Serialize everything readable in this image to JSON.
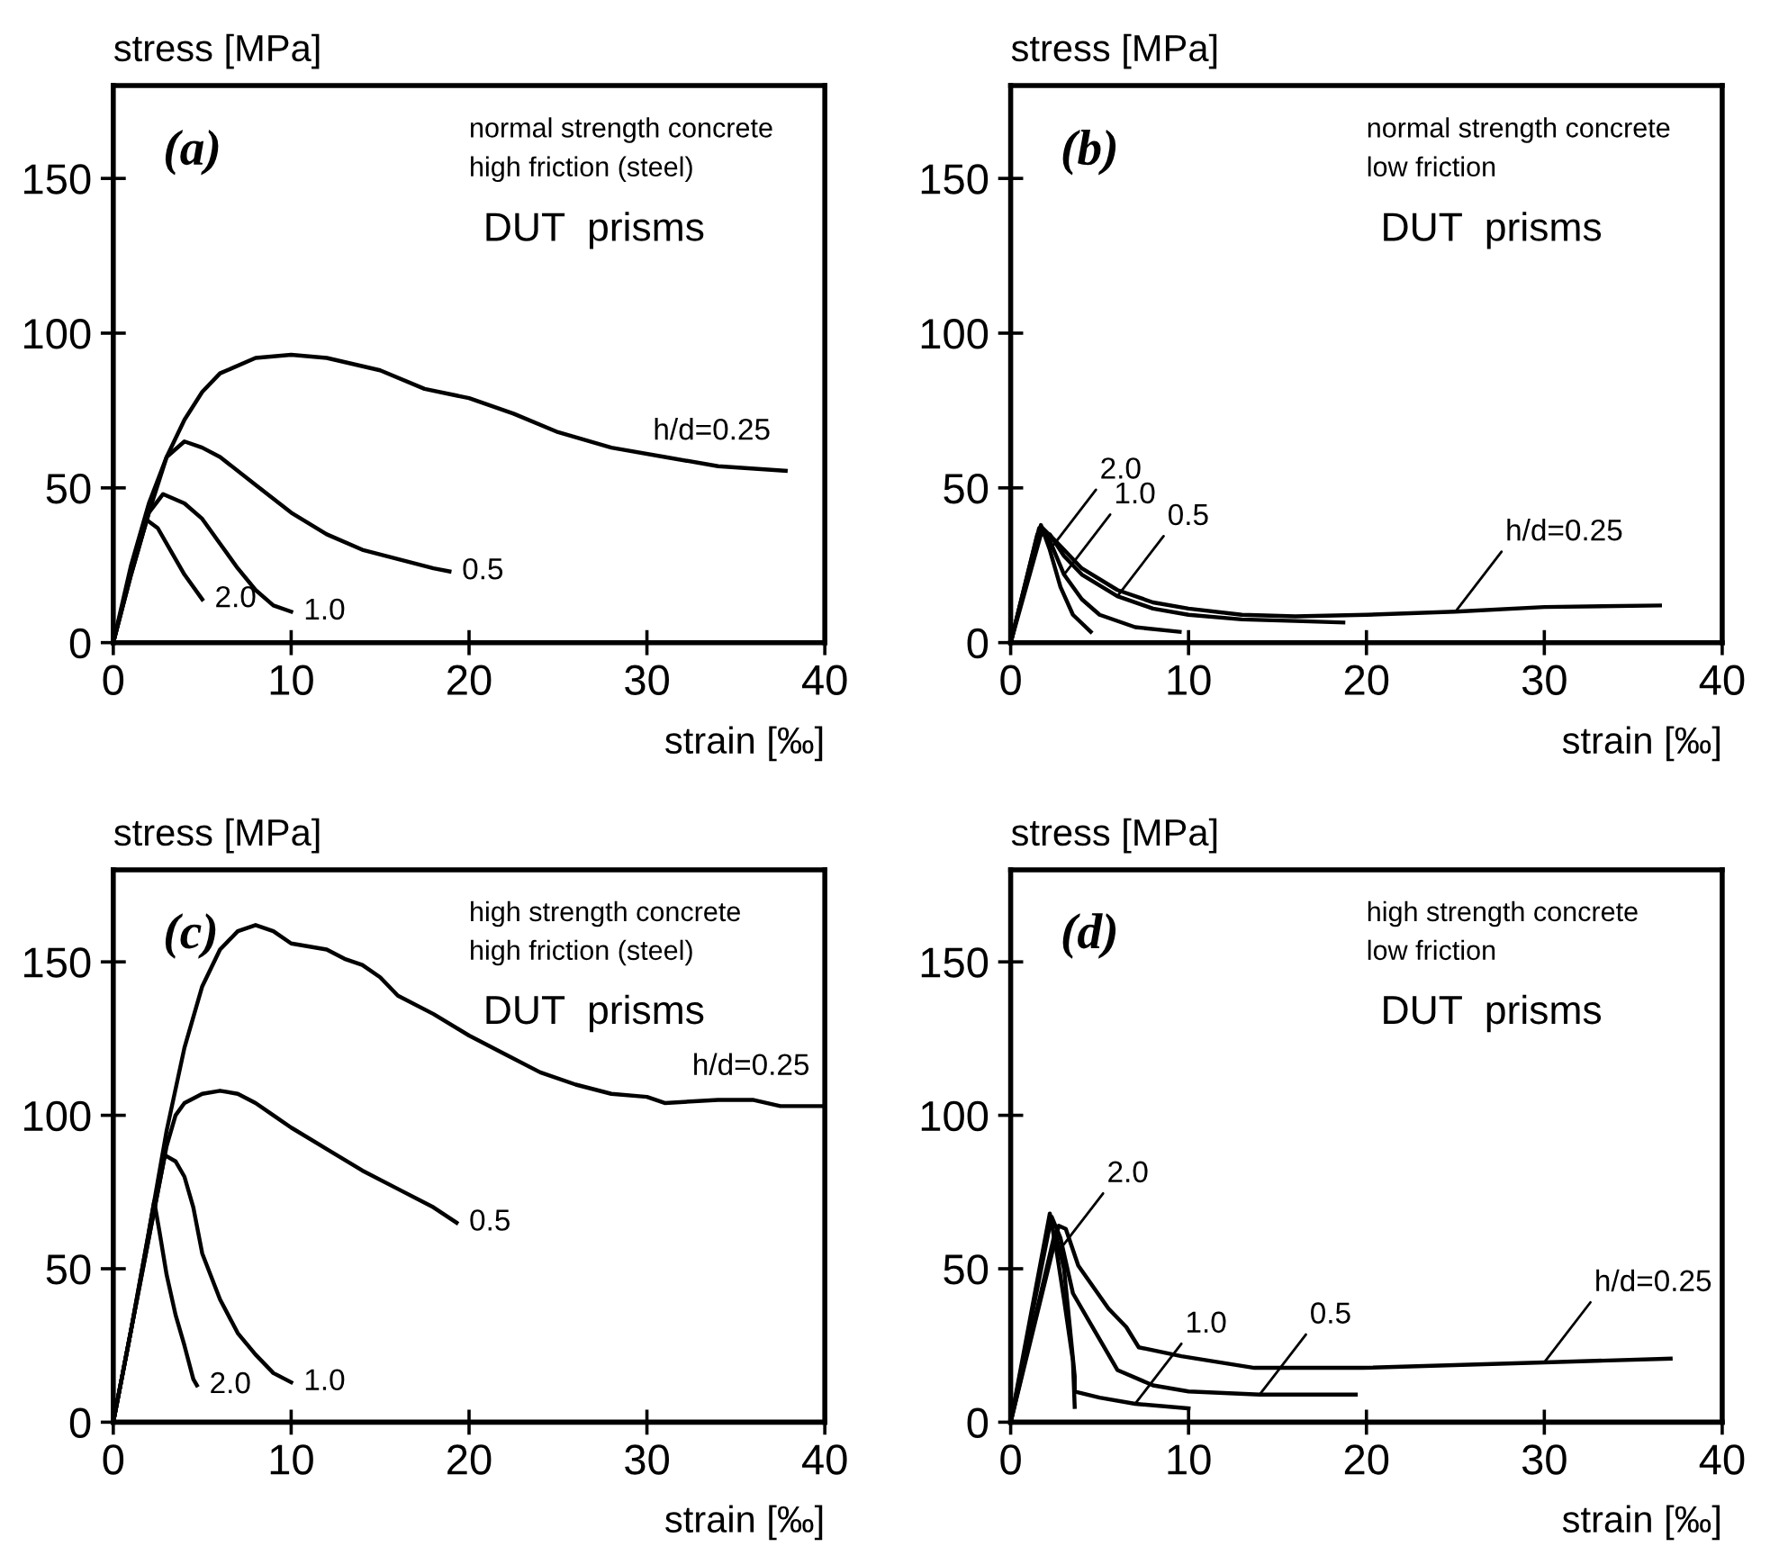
{
  "chart_data": [
    {
      "type": "line",
      "xlabel": "strain [‰]",
      "ylabel": "stress [MPa]",
      "xlim": [
        0,
        40
      ],
      "ylim": [
        0,
        180
      ],
      "xticks": [
        0,
        10,
        20,
        30,
        40
      ],
      "yticks": [
        0,
        50,
        100,
        150
      ],
      "grid": false,
      "legend": false,
      "marker": "none",
      "line_style": "solid",
      "annotations": [
        "(a)",
        "normal strength concrete",
        "high friction (steel)",
        "DUT  prisms",
        {
          "text": "h/d=0.25",
          "x": 37.8,
          "y": 55.5
        },
        {
          "text": "0.5",
          "x": 18.9,
          "y": 23
        },
        {
          "text": "1.0",
          "x": 10,
          "y": 10
        },
        {
          "text": "2.0",
          "x": 5,
          "y": 14
        }
      ],
      "series": [
        {
          "color": "#000000",
          "x": [
            0,
            1,
            2,
            3,
            4,
            5,
            6,
            8,
            10,
            12,
            15,
            17.5,
            20,
            22.5,
            25,
            28,
            31,
            34,
            37.8
          ],
          "values": [
            0,
            25,
            45,
            60,
            72,
            81,
            87,
            92,
            93,
            92,
            88,
            82,
            79,
            74,
            68,
            63,
            60,
            57,
            55.5
          ]
        },
        {
          "color": "#000000",
          "x": [
            0,
            1,
            2,
            3,
            4,
            5,
            6,
            8,
            10,
            12,
            14,
            16,
            18,
            18.9
          ],
          "values": [
            0,
            22,
            42,
            60,
            65,
            63,
            60,
            51,
            42,
            35,
            30,
            27,
            24,
            23
          ]
        },
        {
          "color": "#000000",
          "x": [
            0,
            1,
            2,
            2.8,
            4,
            5,
            6,
            7,
            8,
            9,
            10
          ],
          "values": [
            0,
            22,
            42,
            48,
            45,
            40,
            32,
            24,
            17,
            12,
            10
          ]
        },
        {
          "color": "#000000",
          "x": [
            0,
            1,
            1.8,
            2.5,
            3.2,
            4,
            5
          ],
          "values": [
            0,
            23,
            40,
            37,
            30,
            22,
            14
          ]
        }
      ]
    },
    {
      "type": "line",
      "xlabel": "strain [‰]",
      "ylabel": "stress [MPa]",
      "xlim": [
        0,
        40
      ],
      "ylim": [
        0,
        180
      ],
      "xticks": [
        0,
        10,
        20,
        30,
        40
      ],
      "yticks": [
        0,
        50,
        100,
        150
      ],
      "grid": false,
      "legend": false,
      "marker": "none",
      "line_style": "solid",
      "annotations": [
        "(b)",
        "normal strength concrete",
        "low friction",
        "DUT  prisms",
        {
          "text": "h/d=0.25",
          "x": 25,
          "y": 10
        },
        {
          "text": "0.5",
          "x": 6,
          "y": 15
        },
        {
          "text": "1.0",
          "x": 3,
          "y": 22
        },
        {
          "text": "2.0",
          "x": 2.2,
          "y": 30
        }
      ],
      "series": [
        {
          "color": "#000000",
          "x": [
            0,
            1.8,
            2.5,
            4,
            6,
            8,
            10,
            13,
            16,
            20,
            25,
            30,
            36.5
          ],
          "values": [
            0,
            37,
            33,
            24,
            17,
            13,
            11,
            9,
            8.5,
            9,
            10,
            11.5,
            12
          ]
        },
        {
          "color": "#000000",
          "x": [
            0,
            1.5,
            2.2,
            3,
            4,
            6,
            8,
            10,
            13,
            16,
            18.7
          ],
          "values": [
            0,
            35,
            35,
            28,
            22,
            15,
            11,
            9,
            7.5,
            7,
            6.5
          ]
        },
        {
          "color": "#000000",
          "x": [
            0,
            1.6,
            2.2,
            3,
            4,
            5,
            7,
            9.5
          ],
          "values": [
            0,
            37,
            33,
            22,
            14,
            9,
            5,
            3.5
          ]
        },
        {
          "color": "#000000",
          "x": [
            0,
            1.7,
            2.2,
            2.8,
            3.5,
            4.5
          ],
          "values": [
            0,
            38,
            30,
            18,
            9,
            3.5
          ]
        }
      ]
    },
    {
      "type": "line",
      "xlabel": "strain [‰]",
      "ylabel": "stress [MPa]",
      "xlim": [
        0,
        40
      ],
      "ylim": [
        0,
        180
      ],
      "xticks": [
        0,
        10,
        20,
        30,
        40
      ],
      "yticks": [
        0,
        50,
        100,
        150
      ],
      "grid": false,
      "legend": false,
      "marker": "none",
      "line_style": "solid",
      "annotations": [
        "(c)",
        "high strength concrete",
        "high friction (steel)",
        "DUT  prisms",
        {
          "text": "h/d=0.25",
          "x": 40,
          "y": 103
        },
        {
          "text": "0.5",
          "x": 19.3,
          "y": 65
        },
        {
          "text": "1.0",
          "x": 10,
          "y": 13
        },
        {
          "text": "2.0",
          "x": 4.7,
          "y": 12
        }
      ],
      "series": [
        {
          "color": "#000000",
          "x": [
            0,
            1,
            2,
            3,
            4,
            5,
            6,
            7,
            8,
            9,
            10,
            12,
            13,
            14,
            15,
            16,
            18,
            20,
            22,
            24,
            26,
            28,
            30,
            31,
            34,
            36,
            37.5,
            40
          ],
          "values": [
            0,
            30,
            62,
            95,
            122,
            142,
            154,
            160,
            162,
            160,
            156,
            154,
            151,
            149,
            145,
            139,
            133,
            126,
            120,
            114,
            110,
            107,
            106,
            104,
            105,
            105,
            103,
            103
          ]
        },
        {
          "color": "#000000",
          "x": [
            0,
            1,
            2,
            3,
            3.5,
            4,
            5,
            6,
            7,
            8,
            9,
            10,
            12,
            14,
            16,
            18,
            19.3
          ],
          "values": [
            0,
            30,
            60,
            90,
            100,
            104,
            107,
            108,
            107,
            104,
            100,
            96,
            89,
            82,
            76,
            70,
            65
          ]
        },
        {
          "color": "#000000",
          "x": [
            0,
            1,
            2,
            2.9,
            3.5,
            4,
            4.5,
            5,
            6,
            7,
            8,
            9,
            10
          ],
          "values": [
            0,
            30,
            60,
            87,
            85,
            80,
            70,
            55,
            40,
            29,
            22,
            16,
            13
          ]
        },
        {
          "color": "#000000",
          "x": [
            0,
            1,
            2,
            2.3,
            2.6,
            3,
            3.5,
            4,
            4.5,
            4.7
          ],
          "values": [
            0,
            30,
            62,
            72,
            62,
            48,
            35,
            25,
            14,
            12
          ]
        }
      ]
    },
    {
      "type": "line",
      "xlabel": "strain [‰]",
      "ylabel": "stress [MPa]",
      "xlim": [
        0,
        40
      ],
      "ylim": [
        0,
        180
      ],
      "xticks": [
        0,
        10,
        20,
        30,
        40
      ],
      "yticks": [
        0,
        50,
        100,
        150
      ],
      "grid": false,
      "legend": false,
      "marker": "none",
      "line_style": "solid",
      "annotations": [
        "(d)",
        "high strength concrete",
        "low friction",
        "DUT  prisms",
        {
          "text": "h/d=0.25",
          "x": 30,
          "y": 19.5
        },
        {
          "text": "0.5",
          "x": 14,
          "y": 9
        },
        {
          "text": "1.0",
          "x": 7,
          "y": 6
        },
        {
          "text": "2.0",
          "x": 2.6,
          "y": 55
        }
      ],
      "series": [
        {
          "color": "#000000",
          "x": [
            0,
            2.7,
            3.1,
            3.8,
            5.5,
            6.5,
            7.2,
            9.6,
            13.7,
            19.8,
            30,
            37.1
          ],
          "values": [
            0,
            64,
            63,
            51,
            37,
            31,
            24.4,
            21.5,
            17.7,
            17.7,
            19.5,
            20.7
          ]
        },
        {
          "color": "#000000",
          "x": [
            0,
            2.3,
            2.8,
            3.5,
            4.5,
            5.2,
            6,
            8,
            10,
            14,
            19.4
          ],
          "values": [
            0,
            67,
            60,
            42,
            32,
            25,
            17,
            12,
            10,
            9,
            9
          ]
        },
        {
          "color": "#000000",
          "x": [
            0,
            2.5,
            3,
            3.6,
            3.6,
            5,
            7,
            10
          ],
          "values": [
            0,
            62,
            50,
            15,
            10,
            8,
            6,
            4.5
          ]
        },
        {
          "color": "#000000",
          "x": [
            0,
            2.2,
            2.6,
            3,
            3.5,
            3.6
          ],
          "values": [
            0,
            68,
            55,
            40,
            20,
            5
          ]
        }
      ]
    }
  ]
}
